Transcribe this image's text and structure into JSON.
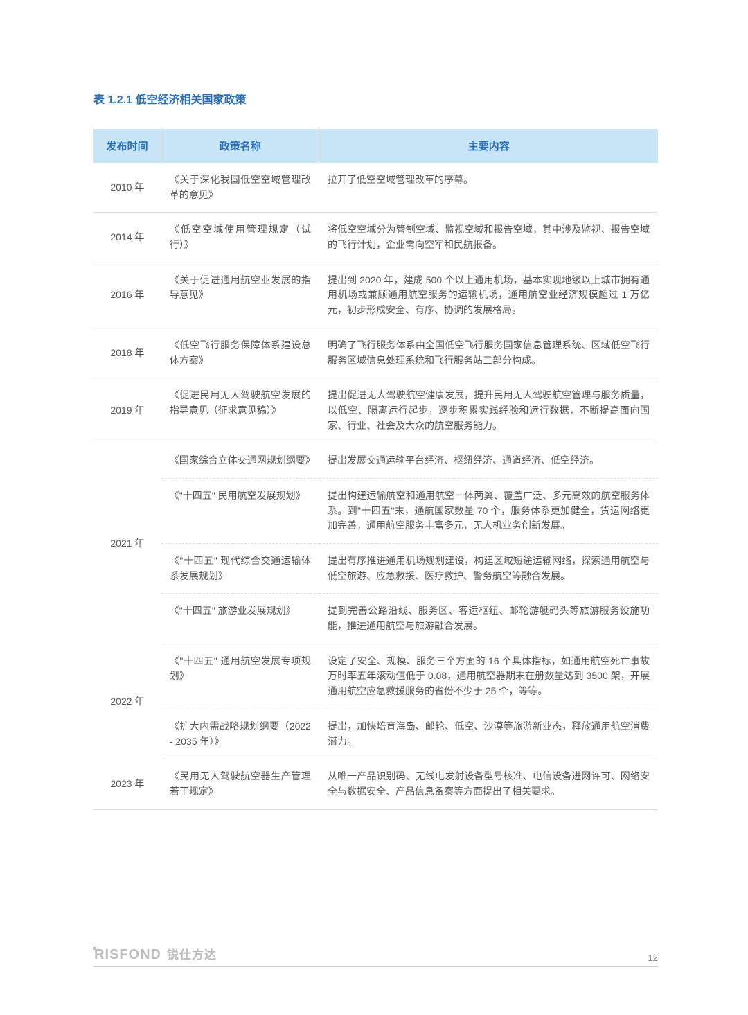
{
  "colors": {
    "caption": "#2b6fb5",
    "header_bg": "#c7e5f7",
    "header_text": "#2b6fb5",
    "body_text": "#555555",
    "border": "#dddddd",
    "logo": "#bdbdbd",
    "page_bg": "#ffffff"
  },
  "typography": {
    "caption_fontsize": 16,
    "header_fontsize": 15,
    "body_fontsize": 14,
    "line_height": 1.55
  },
  "caption": "表 1.2.1 低空经济相关国家政策",
  "headers": {
    "col1": "发布时间",
    "col2": "政策名称",
    "col3": "主要内容"
  },
  "column_widths": [
    "12%",
    "28%",
    "60%"
  ],
  "rows": [
    {
      "year": "2010 年",
      "items": [
        {
          "policy": "《关于深化我国低空空域管理改革的意见》",
          "content": "拉开了低空空域管理改革的序幕。"
        }
      ]
    },
    {
      "year": "2014 年",
      "items": [
        {
          "policy": "《低空空域使用管理规定（试行）》",
          "content": "将低空空域分为管制空域、监视空域和报告空域，其中涉及监视、报告空域的飞行计划，企业需向空军和民航报备。"
        }
      ]
    },
    {
      "year": "2016 年",
      "items": [
        {
          "policy": "《关于促进通用航空业发展的指导意见》",
          "content": "提出到 2020 年，建成 500 个以上通用机场，基本实现地级以上城市拥有通用机场或兼顾通用航空服务的运输机场，通用航空业经济规模超过 1 万亿元，初步形成安全、有序、协调的发展格局。"
        }
      ]
    },
    {
      "year": "2018 年",
      "items": [
        {
          "policy": "《低空飞行服务保障体系建设总体方案》",
          "content": "明确了飞行服务体系由全国低空飞行服务国家信息管理系统、区域低空飞行服务区域信息处理系统和飞行服务站三部分构成。"
        }
      ]
    },
    {
      "year": "2019 年",
      "items": [
        {
          "policy": "《促进民用无人驾驶航空发展的指导意见（征求意见稿）》",
          "content": "提出促进无人驾驶航空健康发展，提升民用无人驾驶航空管理与服务质量，以低空、隔离运行起步，逐步积累实践经验和运行数据，不断提高面向国家、行业、社会及大众的航空服务能力。"
        }
      ]
    },
    {
      "year": "2021 年",
      "items": [
        {
          "policy": "《国家综合立体交通网规划纲要》",
          "content": "提出发展交通运输平台经济、枢纽经济、通道经济、低空经济。"
        },
        {
          "policy": "《\"十四五\" 民用航空发展规划》",
          "content": "提出构建运输航空和通用航空一体两翼、覆盖广泛、多元高效的航空服务体系。到\"十四五\"末，通航国家数量 70 个，服务体系更加健全，货运网络更加完善，通用航空服务丰富多元，无人机业务创新发展。"
        },
        {
          "policy": "《\"十四五\" 现代综合交通运输体系发展规划》",
          "content": "提出有序推进通用机场规划建设，构建区域短途运输网络，探索通用航空与低空旅游、应急救援、医疗救护、警务航空等融合发展。"
        },
        {
          "policy": "《\"十四五\" 旅游业发展规划》",
          "content": "提到完善公路沿线、服务区、客运枢纽、邮轮游艇码头等旅游服务设施功能，推进通用航空与旅游融合发展。"
        }
      ]
    },
    {
      "year": "2022 年",
      "items": [
        {
          "policy": "《\"十四五\" 通用航空发展专项规划》",
          "content": "设定了安全、规模、服务三个方面的 16 个具体指标，如通用航空死亡事故万时率五年滚动值低于 0.08，通用航空器期末在册数量达到 3500 架，开展通用航空应急救援服务的省份不少于 25 个，等等。"
        },
        {
          "policy": "《扩大内需战略规划纲要（2022 - 2035 年）》",
          "content": "提出，加快培育海岛、邮轮、低空、沙漠等旅游新业态，释放通用航空消费潜力。"
        }
      ]
    },
    {
      "year": "2023 年",
      "items": [
        {
          "policy": "《民用无人驾驶航空器生产管理若干规定》",
          "content": "从唯一产品识别码、无线电发射设备型号核准、电信设备进网许可、网络安全与数据安全、产品信息备案等方面提出了相关要求。"
        }
      ]
    }
  ],
  "footer": {
    "logo_en": "RISFOND",
    "logo_cn": "锐仕方达",
    "page_number": "12"
  }
}
